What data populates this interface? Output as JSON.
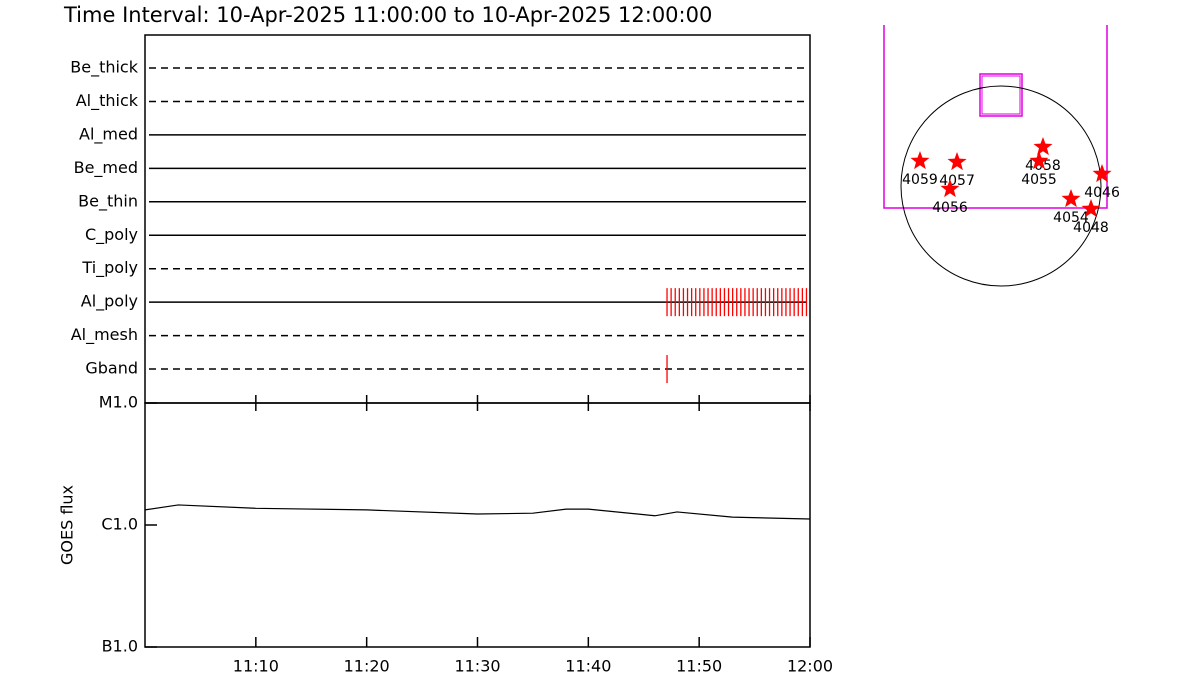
{
  "title": "Time Interval: 10-Apr-2025 11:00:00 to 10-Apr-2025 12:00:00",
  "chart_data": [
    {
      "type": "timeline",
      "categories": [
        "Be_thick",
        "Al_thick",
        "Al_med",
        "Be_med",
        "Be_thin",
        "C_poly",
        "Ti_poly",
        "Al_poly",
        "Al_mesh",
        "Gband"
      ],
      "line_styles": [
        "dashed",
        "dashed",
        "solid",
        "solid",
        "solid",
        "solid",
        "dashed",
        "solid",
        "dashed",
        "dashed"
      ],
      "events": [
        [],
        [],
        [],
        [],
        [],
        [],
        [],
        [
          47.1,
          47.47,
          47.84,
          48.21,
          48.58,
          48.95,
          49.32,
          49.69,
          50.06,
          50.43,
          50.8,
          51.17,
          51.54,
          51.91,
          52.28,
          52.65,
          53.02,
          53.39,
          53.76,
          54.13,
          54.5,
          54.87,
          55.24,
          55.61,
          55.98,
          56.35,
          56.72,
          57.09,
          57.46,
          57.83,
          58.2,
          58.57,
          58.94,
          59.31,
          59.68
        ],
        [],
        [
          47.1
        ]
      ],
      "event_color": "#ff0000",
      "xlim": [
        0,
        60
      ]
    },
    {
      "type": "line",
      "ylabel": "GOES flux",
      "x": [
        0,
        3,
        10,
        20,
        30,
        35,
        38,
        40,
        46,
        48,
        53,
        60
      ],
      "values": [
        1.33e-06,
        1.46e-06,
        1.37e-06,
        1.33e-06,
        1.23e-06,
        1.25e-06,
        1.35e-06,
        1.35e-06,
        1.19e-06,
        1.28e-06,
        1.16e-06,
        1.12e-06
      ],
      "color": "#000000",
      "log_y": true,
      "ylim": [
        1e-07,
        1e-05
      ],
      "yticks": [
        {
          "value": 1e-07,
          "label": "B1.0"
        },
        {
          "value": 1e-06,
          "label": "C1.0"
        },
        {
          "value": 1e-05,
          "label": "M1.0"
        }
      ],
      "xlim": [
        0,
        60
      ],
      "xticks": [
        {
          "value": 10,
          "label": "11:10"
        },
        {
          "value": 20,
          "label": "11:20"
        },
        {
          "value": 30,
          "label": "11:30"
        },
        {
          "value": 40,
          "label": "11:40"
        },
        {
          "value": 50,
          "label": "11:50"
        },
        {
          "value": 60,
          "label": "12:00"
        }
      ]
    },
    {
      "type": "map",
      "disk_radius": 960,
      "labels": [
        "4059",
        "4057",
        "4056",
        "4058",
        "4055",
        "4046",
        "4054",
        "4048"
      ],
      "x": [
        -778,
        -422,
        -490,
        403,
        365,
        970,
        672,
        864
      ],
      "y": [
        240,
        230,
        -29,
        374,
        240,
        115,
        -125,
        -221
      ],
      "color": "#ff0000"
    }
  ]
}
